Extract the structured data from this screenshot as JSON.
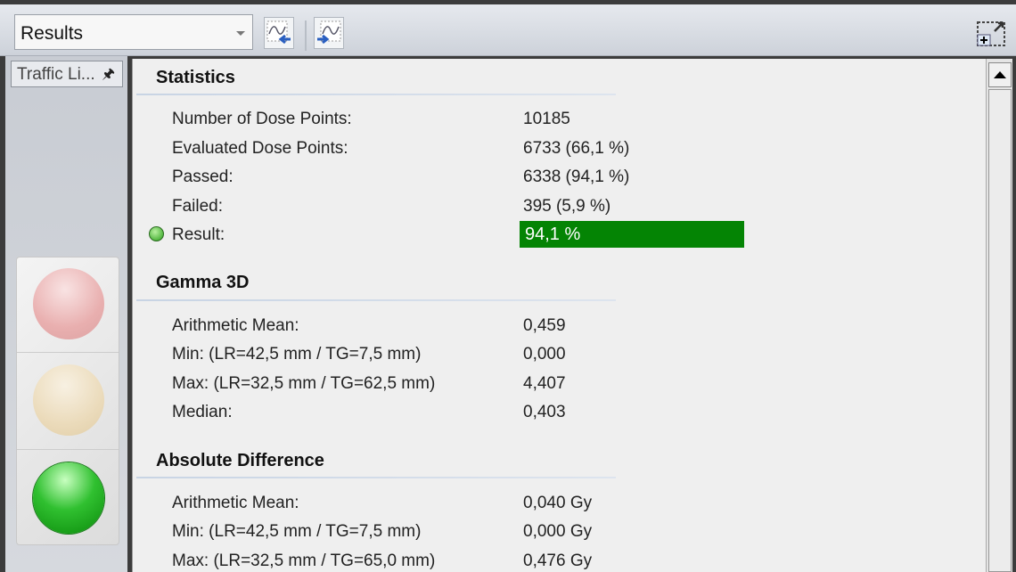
{
  "toolbar": {
    "view_select": "Results",
    "buttons": [
      {
        "icon": "curve-import-icon"
      },
      {
        "icon": "curve-export-icon"
      }
    ],
    "right_icon": "add-window-icon"
  },
  "side_panel": {
    "tab_label": "Traffic Li...",
    "pin_icon": "pin-icon",
    "traffic_light": {
      "active": "green",
      "colors": {
        "red": "#e9a0a0",
        "yellow": "#ecd8b0",
        "green": "#22b022"
      }
    }
  },
  "statistics": {
    "title": "Statistics",
    "rows": [
      {
        "label": "Number of Dose Points:",
        "value": "10185"
      },
      {
        "label": "Evaluated Dose Points:",
        "value": "6733 (66,1 %)"
      },
      {
        "label": "Passed:",
        "value": "6338 (94,1 %)"
      },
      {
        "label": "Failed:",
        "value": "395 (5,9 %)"
      }
    ],
    "result_label": "Result:",
    "result_value": "94,1 %",
    "result_color": "#048404"
  },
  "gamma": {
    "title": "Gamma 3D",
    "rows": [
      {
        "label": "Arithmetic Mean:",
        "value": "0,459"
      },
      {
        "label": "Min: (LR=42,5 mm / TG=7,5 mm)",
        "value": "0,000"
      },
      {
        "label": "Max: (LR=32,5 mm / TG=62,5 mm)",
        "value": "4,407"
      },
      {
        "label": "Median:",
        "value": "0,403"
      }
    ]
  },
  "absdiff": {
    "title": "Absolute Difference",
    "rows": [
      {
        "label": "Arithmetic Mean:",
        "value": "0,040 Gy"
      },
      {
        "label": "Min: (LR=42,5 mm / TG=7,5 mm)",
        "value": "0,000 Gy"
      },
      {
        "label": "Max: (LR=32,5 mm / TG=65,0 mm)",
        "value": "0,476 Gy"
      }
    ]
  }
}
